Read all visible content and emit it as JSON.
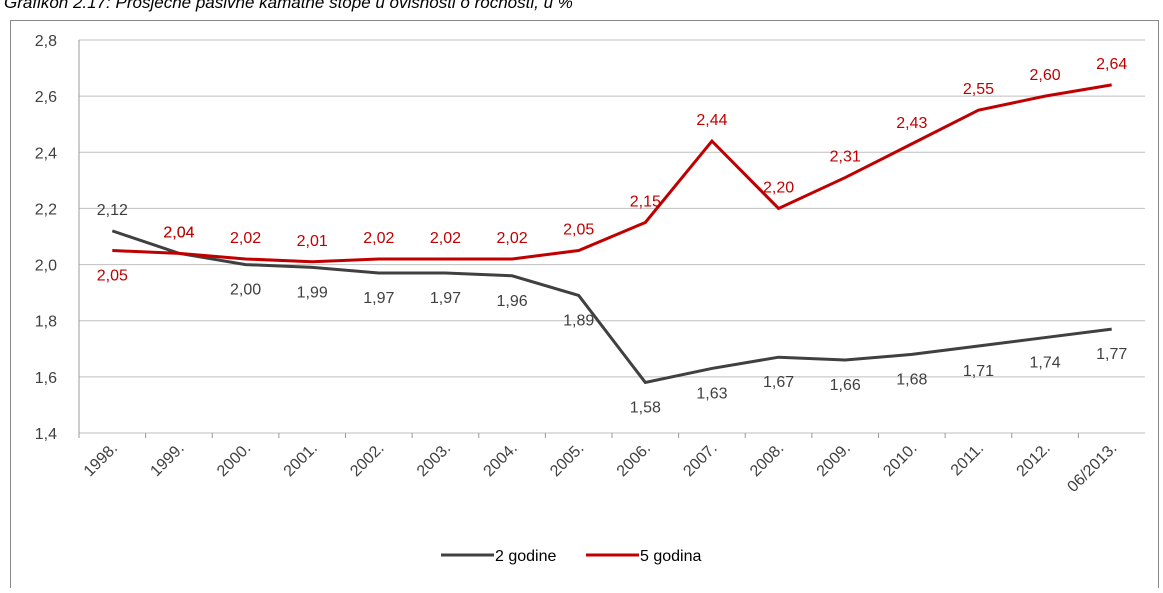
{
  "chart_data": {
    "type": "line",
    "title": "Grafikon 2.17: Prosječne pasivne kamatne stope u ovisnosti o ročnosti, u %",
    "categories": [
      "1998.",
      "1999.",
      "2000.",
      "2001.",
      "2002.",
      "2003.",
      "2004.",
      "2005.",
      "2006.",
      "2007.",
      "2008.",
      "2009.",
      "2010.",
      "2011.",
      "2012.",
      "06/2013."
    ],
    "series": [
      {
        "name": "2 godine",
        "color": "#404040",
        "values": [
          2.12,
          2.04,
          2.0,
          1.99,
          1.97,
          1.97,
          1.96,
          1.89,
          1.58,
          1.63,
          1.67,
          1.66,
          1.68,
          1.71,
          1.74,
          1.77
        ],
        "value_labels": [
          "2,12",
          "2,04",
          "2,00",
          "1,99",
          "1,97",
          "1,97",
          "1,96",
          "1,89",
          "1,58",
          "1,63",
          "1,67",
          "1,66",
          "1,68",
          "1,71",
          "1,74",
          "1,77"
        ]
      },
      {
        "name": "5 godina",
        "color": "#c00000",
        "values": [
          2.05,
          2.04,
          2.02,
          2.01,
          2.02,
          2.02,
          2.02,
          2.05,
          2.15,
          2.44,
          2.2,
          2.31,
          2.43,
          2.55,
          2.6,
          2.64
        ],
        "value_labels": [
          "2,05",
          "2,04",
          "2,02",
          "2,01",
          "2,02",
          "2,02",
          "2,02",
          "2,05",
          "2,15",
          "2,44",
          "2,20",
          "2,31",
          "2,43",
          "2,55",
          "2,60",
          "2,64"
        ]
      }
    ],
    "ylim": [
      1.4,
      2.8
    ],
    "yticks": [
      {
        "value": 1.4,
        "label": "1,4"
      },
      {
        "value": 1.6,
        "label": "1,6"
      },
      {
        "value": 1.8,
        "label": "1,8"
      },
      {
        "value": 2.0,
        "label": "2,0"
      },
      {
        "value": 2.2,
        "label": "2,2"
      },
      {
        "value": 2.4,
        "label": "2,4"
      },
      {
        "value": 2.6,
        "label": "2,6"
      },
      {
        "value": 2.8,
        "label": "2,8"
      }
    ],
    "grid": true,
    "legend": "bottom"
  }
}
